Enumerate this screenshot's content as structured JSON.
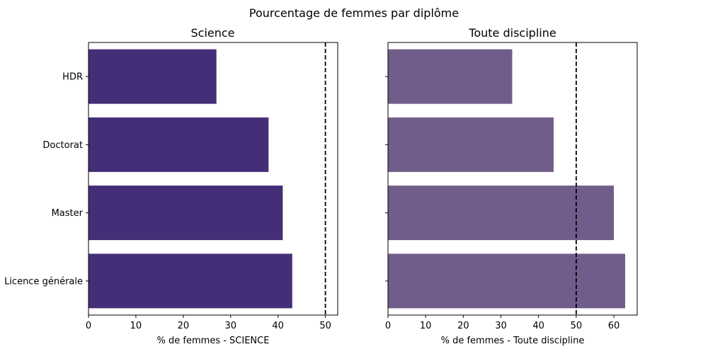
{
  "figure": {
    "suptitle": "Pourcentage de femmes par diplôme"
  },
  "chart_data": [
    {
      "type": "bar",
      "orientation": "horizontal",
      "title": "Science",
      "xlabel": "% de femmes - SCIENCE",
      "ylabel": "",
      "categories": [
        "HDR",
        "Doctorat",
        "Master",
        "Licence générale"
      ],
      "values": [
        27,
        38,
        41,
        43
      ],
      "xlim": [
        0,
        52.6
      ],
      "xticks": [
        0,
        10,
        20,
        30,
        40,
        50
      ],
      "reference_line": {
        "x": 50,
        "style": "dashed",
        "color": "#000000"
      },
      "color": "#452e78",
      "show_category_labels": true,
      "grid": false
    },
    {
      "type": "bar",
      "orientation": "horizontal",
      "title": "Toute discipline",
      "xlabel": "% de femmes - Toute discipline",
      "ylabel": "",
      "categories": [
        "HDR",
        "Doctorat",
        "Master",
        "Licence générale"
      ],
      "values": [
        33,
        44,
        60,
        63
      ],
      "xlim": [
        0,
        66.2
      ],
      "xticks": [
        0,
        10,
        20,
        30,
        40,
        50,
        60
      ],
      "reference_line": {
        "x": 50,
        "style": "dashed",
        "color": "#000000"
      },
      "color": "#715d8a",
      "show_category_labels": false,
      "grid": false
    }
  ]
}
